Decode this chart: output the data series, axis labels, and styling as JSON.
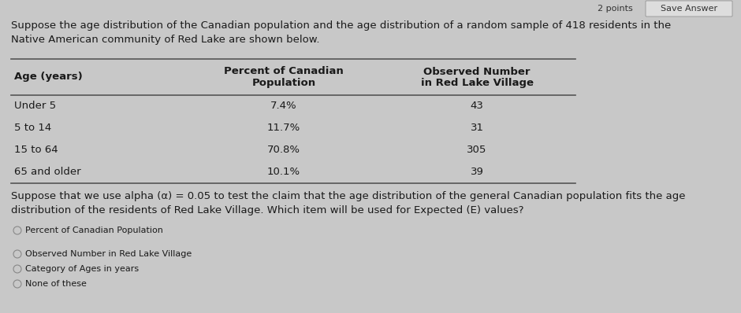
{
  "bg_color": "#c8c8c8",
  "top_bar_color": "#b0b0b0",
  "table_bg": "#e8e8e8",
  "header_text": "Suppose the age distribution of the Canadian population and the age distribution of a random sample of 418 residents in the\nNative American community of Red Lake are shown below.",
  "table_rows": [
    [
      "Under 5",
      "7.4%",
      "43"
    ],
    [
      "5 to 14",
      "11.7%",
      "31"
    ],
    [
      "15 to 64",
      "70.8%",
      "305"
    ],
    [
      "65 and older",
      "10.1%",
      "39"
    ]
  ],
  "question_text": "Suppose that we use alpha (α) = 0.05 to test the claim that the age distribution of the general Canadian population fits the age\ndistribution of the residents of Red Lake Village. Which item will be used for Expected (E) values?",
  "choices_group1": [
    "Percent of Canadian Population"
  ],
  "choices_group2": [
    "Observed Number in Red Lake Village",
    "Category of Ages in years",
    "None of these"
  ],
  "top_right_text": "2 points",
  "top_right_text2": "Save Answer",
  "text_color": "#1a1a1a",
  "font_size": 9.5,
  "font_size_small": 8.0
}
